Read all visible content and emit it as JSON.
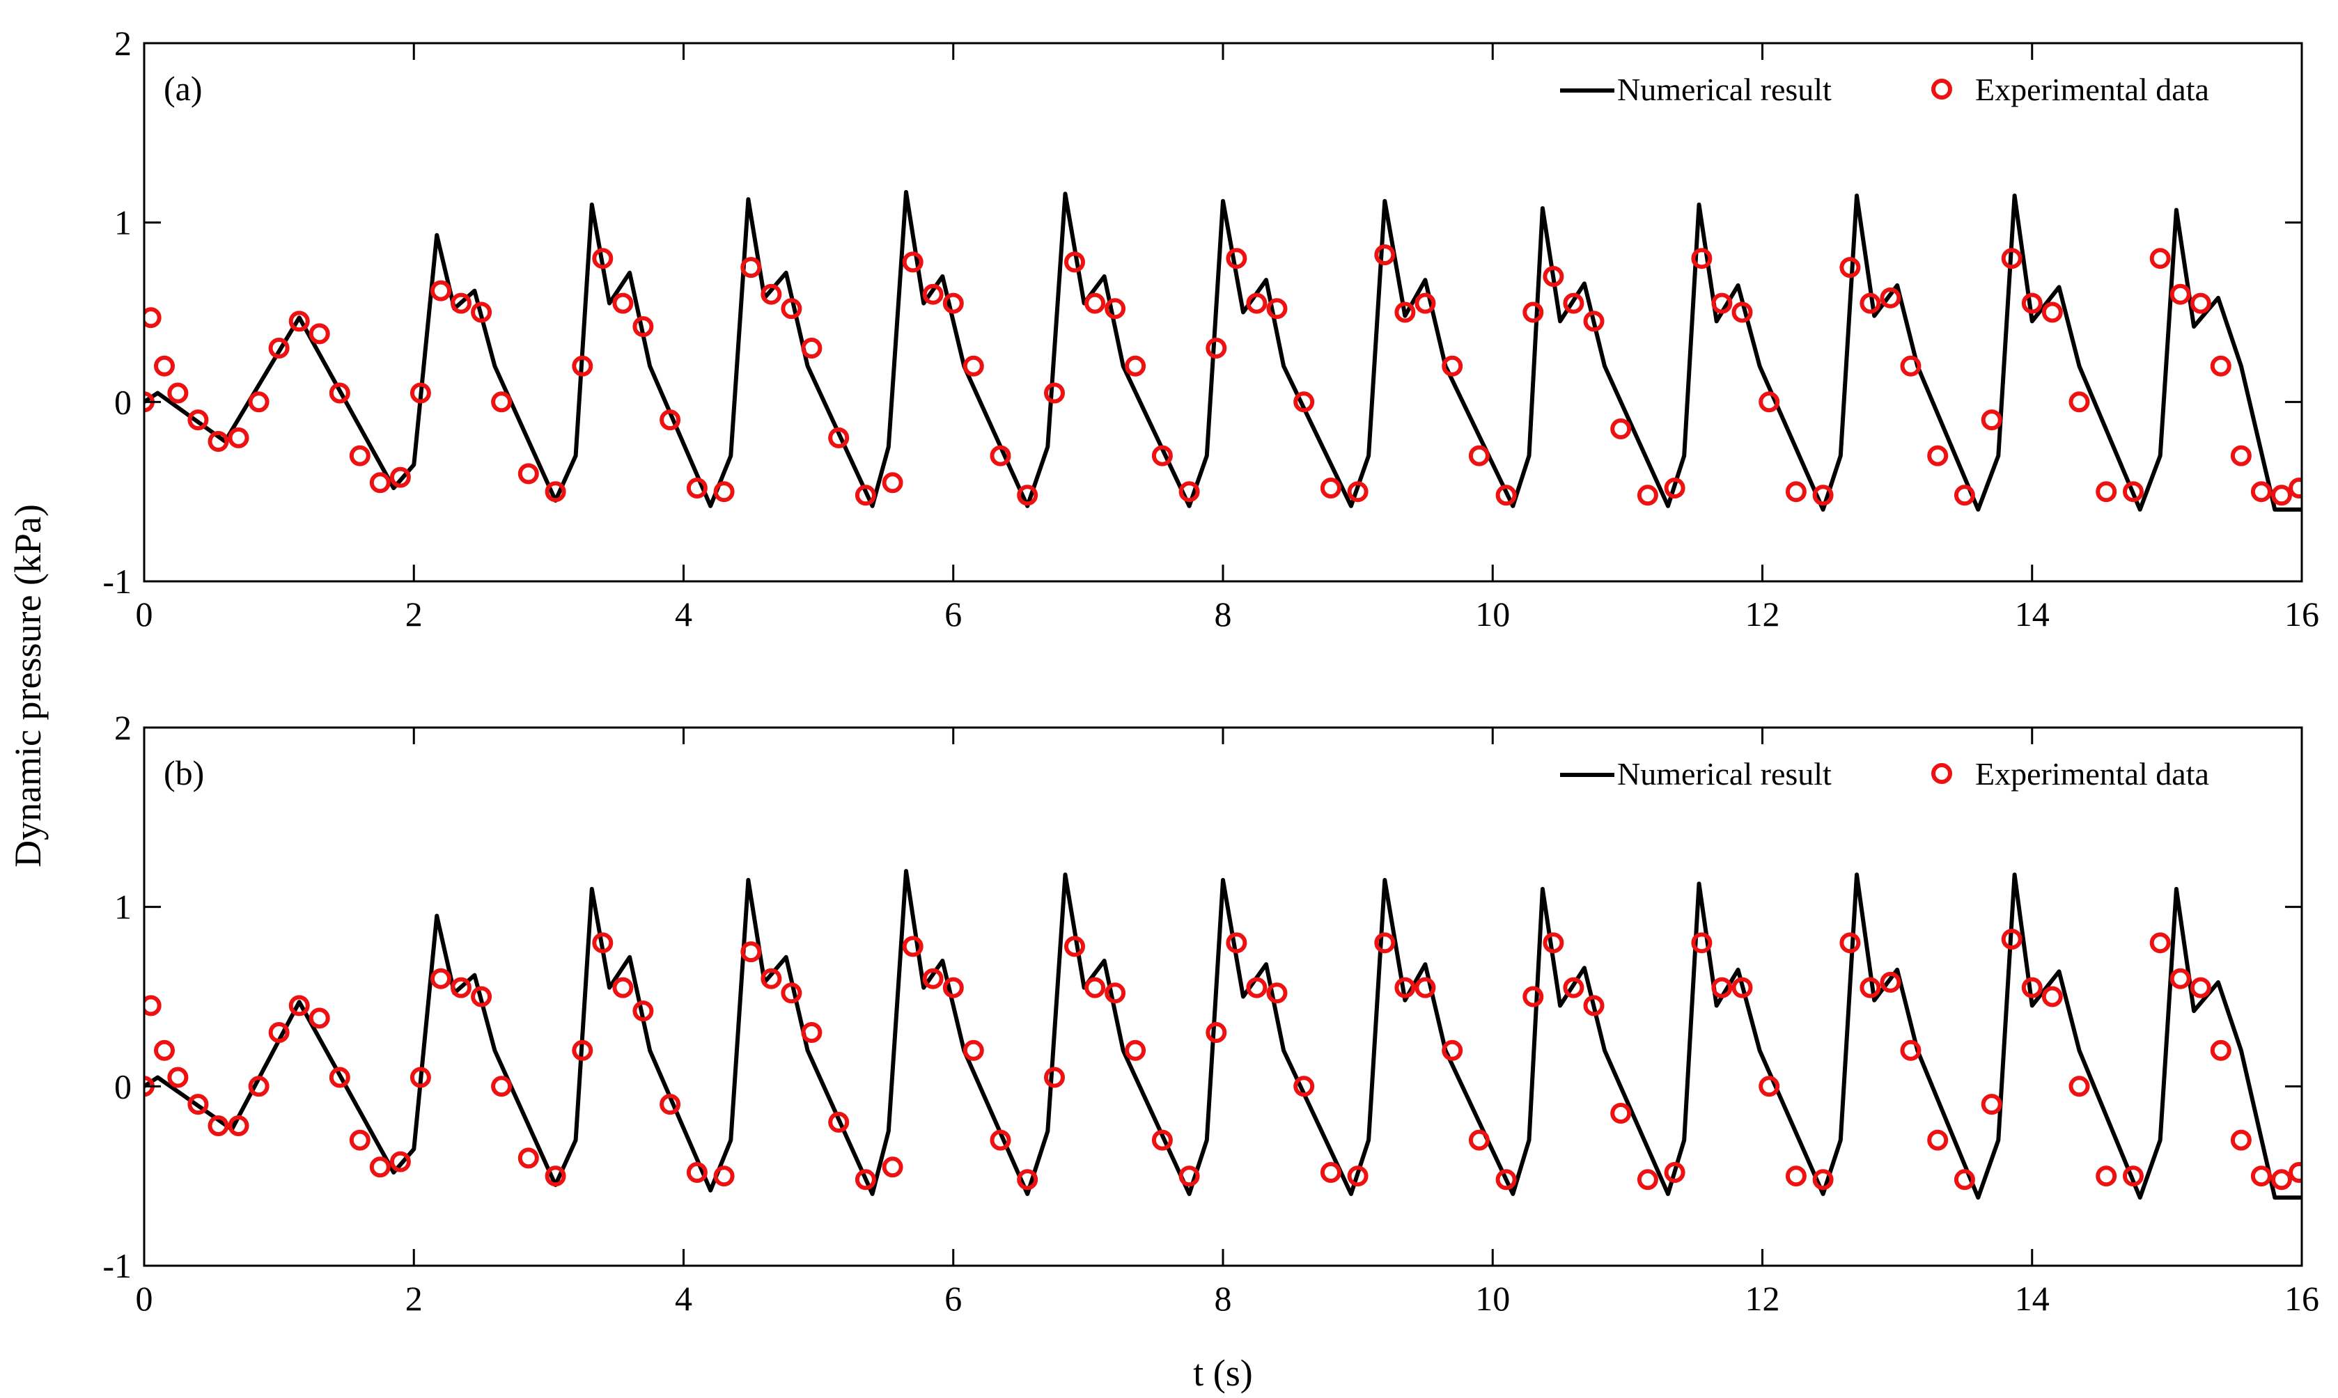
{
  "figure": {
    "ylabel": "Dynamic pressure (kPa)",
    "xlabel": "t (s)"
  },
  "colors": {
    "numerical": "#000000",
    "experimental": "#ee1111",
    "axis": "#000000"
  },
  "chart_data": [
    {
      "type": "line",
      "panel_label": "(a)",
      "xlim": [
        0,
        16
      ],
      "ylim": [
        -1,
        2
      ],
      "xticks": [
        0,
        2,
        4,
        6,
        8,
        10,
        12,
        14,
        16
      ],
      "yticks": [
        -1,
        0,
        1,
        2
      ],
      "xtick_labels": [
        "0",
        "2",
        "4",
        "6",
        "8",
        "10",
        "12",
        "14",
        "16"
      ],
      "ytick_labels": [
        "-1",
        "0",
        "1",
        "2"
      ],
      "legend": {
        "position": "top-right",
        "entries": [
          "Numerical result",
          "Experimental data"
        ]
      },
      "series": [
        {
          "name": "Numerical result",
          "style": "line",
          "x": [
            0,
            0.1,
            0.6,
            1.15,
            1.85,
            2.0,
            2.17,
            2.3,
            2.45,
            2.6,
            3.05,
            3.2,
            3.32,
            3.45,
            3.6,
            3.75,
            4.2,
            4.35,
            4.48,
            4.6,
            4.76,
            4.92,
            5.4,
            5.52,
            5.65,
            5.78,
            5.92,
            6.08,
            6.55,
            6.7,
            6.83,
            6.97,
            7.12,
            7.26,
            7.75,
            7.88,
            8.0,
            8.15,
            8.32,
            8.45,
            8.95,
            9.08,
            9.2,
            9.35,
            9.5,
            9.65,
            10.15,
            10.27,
            10.37,
            10.5,
            10.68,
            10.83,
            11.3,
            11.42,
            11.53,
            11.66,
            11.82,
            11.98,
            12.45,
            12.58,
            12.7,
            12.83,
            13.0,
            13.15,
            13.6,
            13.75,
            13.87,
            14.0,
            14.2,
            14.35,
            14.8,
            14.95,
            15.07,
            15.2,
            15.38,
            15.55,
            15.8,
            16.0
          ],
          "y": [
            0,
            0.05,
            -0.22,
            0.47,
            -0.48,
            -0.35,
            0.93,
            0.52,
            0.62,
            0.2,
            -0.55,
            -0.3,
            1.1,
            0.55,
            0.72,
            0.2,
            -0.58,
            -0.3,
            1.13,
            0.58,
            0.72,
            0.2,
            -0.58,
            -0.25,
            1.17,
            0.55,
            0.7,
            0.2,
            -0.58,
            -0.25,
            1.16,
            0.55,
            0.7,
            0.2,
            -0.58,
            -0.3,
            1.12,
            0.5,
            0.68,
            0.2,
            -0.58,
            -0.3,
            1.12,
            0.48,
            0.68,
            0.2,
            -0.58,
            -0.3,
            1.08,
            0.45,
            0.66,
            0.2,
            -0.58,
            -0.3,
            1.1,
            0.45,
            0.65,
            0.2,
            -0.6,
            -0.3,
            1.15,
            0.48,
            0.65,
            0.2,
            -0.6,
            -0.3,
            1.15,
            0.45,
            0.64,
            0.2,
            -0.6,
            -0.3,
            1.07,
            0.42,
            0.58,
            0.2,
            -0.6,
            -0.6
          ]
        },
        {
          "name": "Experimental data",
          "style": "markers",
          "x": [
            0.0,
            0.05,
            0.15,
            0.25,
            0.4,
            0.55,
            0.7,
            0.85,
            1.0,
            1.15,
            1.3,
            1.45,
            1.6,
            1.75,
            1.9,
            2.05,
            2.2,
            2.35,
            2.5,
            2.65,
            2.85,
            3.05,
            3.25,
            3.4,
            3.55,
            3.7,
            3.9,
            4.1,
            4.3,
            4.5,
            4.65,
            4.8,
            4.95,
            5.15,
            5.35,
            5.55,
            5.7,
            5.85,
            6.0,
            6.15,
            6.35,
            6.55,
            6.75,
            6.9,
            7.05,
            7.2,
            7.35,
            7.55,
            7.75,
            7.95,
            8.1,
            8.25,
            8.4,
            8.6,
            8.8,
            9.0,
            9.2,
            9.35,
            9.5,
            9.7,
            9.9,
            10.1,
            10.3,
            10.45,
            10.6,
            10.75,
            10.95,
            11.15,
            11.35,
            11.55,
            11.7,
            11.85,
            12.05,
            12.25,
            12.45,
            12.65,
            12.8,
            12.95,
            13.1,
            13.3,
            13.5,
            13.7,
            13.85,
            14.0,
            14.15,
            14.35,
            14.55,
            14.75,
            14.95,
            15.1,
            15.25,
            15.4,
            15.55,
            15.7,
            15.85,
            15.98
          ],
          "y": [
            0.0,
            0.47,
            0.2,
            0.05,
            -0.1,
            -0.22,
            -0.2,
            0.0,
            0.3,
            0.45,
            0.38,
            0.05,
            -0.3,
            -0.45,
            -0.42,
            0.05,
            0.62,
            0.55,
            0.5,
            0.0,
            -0.4,
            -0.5,
            0.2,
            0.8,
            0.55,
            0.42,
            -0.1,
            -0.48,
            -0.5,
            0.75,
            0.6,
            0.52,
            0.3,
            -0.2,
            -0.52,
            -0.45,
            0.78,
            0.6,
            0.55,
            0.2,
            -0.3,
            -0.52,
            0.05,
            0.78,
            0.55,
            0.52,
            0.2,
            -0.3,
            -0.5,
            0.3,
            0.8,
            0.55,
            0.52,
            0.0,
            -0.48,
            -0.5,
            0.82,
            0.5,
            0.55,
            0.2,
            -0.3,
            -0.52,
            0.5,
            0.7,
            0.55,
            0.45,
            -0.15,
            -0.52,
            -0.48,
            0.8,
            0.55,
            0.5,
            0.0,
            -0.5,
            -0.52,
            0.75,
            0.55,
            0.58,
            0.2,
            -0.3,
            -0.52,
            -0.1,
            0.8,
            0.55,
            0.5,
            0.0,
            -0.5,
            -0.5,
            0.8,
            0.6,
            0.55,
            0.2,
            -0.3,
            -0.5,
            -0.52,
            -0.48
          ]
        }
      ]
    },
    {
      "type": "line",
      "panel_label": "(b)",
      "xlim": [
        0,
        16
      ],
      "ylim": [
        -1,
        2
      ],
      "xticks": [
        0,
        2,
        4,
        6,
        8,
        10,
        12,
        14,
        16
      ],
      "yticks": [
        -1,
        0,
        1,
        2
      ],
      "xtick_labels": [
        "0",
        "2",
        "4",
        "6",
        "8",
        "10",
        "12",
        "14",
        "16"
      ],
      "ytick_labels": [
        "-1",
        "0",
        "1",
        "2"
      ],
      "legend": {
        "position": "top-right",
        "entries": [
          "Numerical result",
          "Experimental data"
        ]
      },
      "series": [
        {
          "name": "Numerical result",
          "style": "line",
          "x": [
            0,
            0.1,
            0.65,
            1.15,
            1.85,
            2.0,
            2.17,
            2.3,
            2.45,
            2.6,
            3.05,
            3.2,
            3.32,
            3.45,
            3.6,
            3.75,
            4.2,
            4.35,
            4.48,
            4.6,
            4.76,
            4.92,
            5.4,
            5.52,
            5.65,
            5.78,
            5.92,
            6.08,
            6.55,
            6.7,
            6.83,
            6.97,
            7.12,
            7.26,
            7.75,
            7.88,
            8.0,
            8.15,
            8.32,
            8.45,
            8.95,
            9.08,
            9.2,
            9.35,
            9.5,
            9.65,
            10.15,
            10.27,
            10.37,
            10.5,
            10.68,
            10.83,
            11.3,
            11.42,
            11.53,
            11.66,
            11.82,
            11.98,
            12.45,
            12.58,
            12.7,
            12.83,
            13.0,
            13.15,
            13.6,
            13.75,
            13.87,
            14.0,
            14.2,
            14.35,
            14.8,
            14.95,
            15.07,
            15.2,
            15.38,
            15.55,
            15.8,
            16.0
          ],
          "y": [
            0,
            0.05,
            -0.24,
            0.47,
            -0.48,
            -0.35,
            0.95,
            0.52,
            0.62,
            0.2,
            -0.55,
            -0.3,
            1.1,
            0.55,
            0.72,
            0.2,
            -0.58,
            -0.3,
            1.15,
            0.58,
            0.72,
            0.2,
            -0.6,
            -0.25,
            1.2,
            0.55,
            0.7,
            0.2,
            -0.6,
            -0.25,
            1.18,
            0.55,
            0.7,
            0.2,
            -0.6,
            -0.3,
            1.15,
            0.5,
            0.68,
            0.2,
            -0.6,
            -0.3,
            1.15,
            0.48,
            0.68,
            0.2,
            -0.6,
            -0.3,
            1.1,
            0.45,
            0.66,
            0.2,
            -0.6,
            -0.3,
            1.13,
            0.45,
            0.65,
            0.2,
            -0.6,
            -0.3,
            1.18,
            0.48,
            0.65,
            0.2,
            -0.62,
            -0.3,
            1.18,
            0.45,
            0.64,
            0.2,
            -0.62,
            -0.3,
            1.1,
            0.42,
            0.58,
            0.2,
            -0.62,
            -0.62
          ]
        },
        {
          "name": "Experimental data",
          "style": "markers",
          "x": [
            0.0,
            0.05,
            0.15,
            0.25,
            0.4,
            0.55,
            0.7,
            0.85,
            1.0,
            1.15,
            1.3,
            1.45,
            1.6,
            1.75,
            1.9,
            2.05,
            2.2,
            2.35,
            2.5,
            2.65,
            2.85,
            3.05,
            3.25,
            3.4,
            3.55,
            3.7,
            3.9,
            4.1,
            4.3,
            4.5,
            4.65,
            4.8,
            4.95,
            5.15,
            5.35,
            5.55,
            5.7,
            5.85,
            6.0,
            6.15,
            6.35,
            6.55,
            6.75,
            6.9,
            7.05,
            7.2,
            7.35,
            7.55,
            7.75,
            7.95,
            8.1,
            8.25,
            8.4,
            8.6,
            8.8,
            9.0,
            9.2,
            9.35,
            9.5,
            9.7,
            9.9,
            10.1,
            10.3,
            10.45,
            10.6,
            10.75,
            10.95,
            11.15,
            11.35,
            11.55,
            11.7,
            11.85,
            12.05,
            12.25,
            12.45,
            12.65,
            12.8,
            12.95,
            13.1,
            13.3,
            13.5,
            13.7,
            13.85,
            14.0,
            14.15,
            14.35,
            14.55,
            14.75,
            14.95,
            15.1,
            15.25,
            15.4,
            15.55,
            15.7,
            15.85,
            15.98
          ],
          "y": [
            0.0,
            0.45,
            0.2,
            0.05,
            -0.1,
            -0.22,
            -0.22,
            0.0,
            0.3,
            0.45,
            0.38,
            0.05,
            -0.3,
            -0.45,
            -0.42,
            0.05,
            0.6,
            0.55,
            0.5,
            0.0,
            -0.4,
            -0.5,
            0.2,
            0.8,
            0.55,
            0.42,
            -0.1,
            -0.48,
            -0.5,
            0.75,
            0.6,
            0.52,
            0.3,
            -0.2,
            -0.52,
            -0.45,
            0.78,
            0.6,
            0.55,
            0.2,
            -0.3,
            -0.52,
            0.05,
            0.78,
            0.55,
            0.52,
            0.2,
            -0.3,
            -0.5,
            0.3,
            0.8,
            0.55,
            0.52,
            0.0,
            -0.48,
            -0.5,
            0.8,
            0.55,
            0.55,
            0.2,
            -0.3,
            -0.52,
            0.5,
            0.8,
            0.55,
            0.45,
            -0.15,
            -0.52,
            -0.48,
            0.8,
            0.55,
            0.55,
            0.0,
            -0.5,
            -0.52,
            0.8,
            0.55,
            0.58,
            0.2,
            -0.3,
            -0.52,
            -0.1,
            0.82,
            0.55,
            0.5,
            0.0,
            -0.5,
            -0.5,
            0.8,
            0.6,
            0.55,
            0.2,
            -0.3,
            -0.5,
            -0.52,
            -0.48
          ]
        }
      ]
    }
  ]
}
